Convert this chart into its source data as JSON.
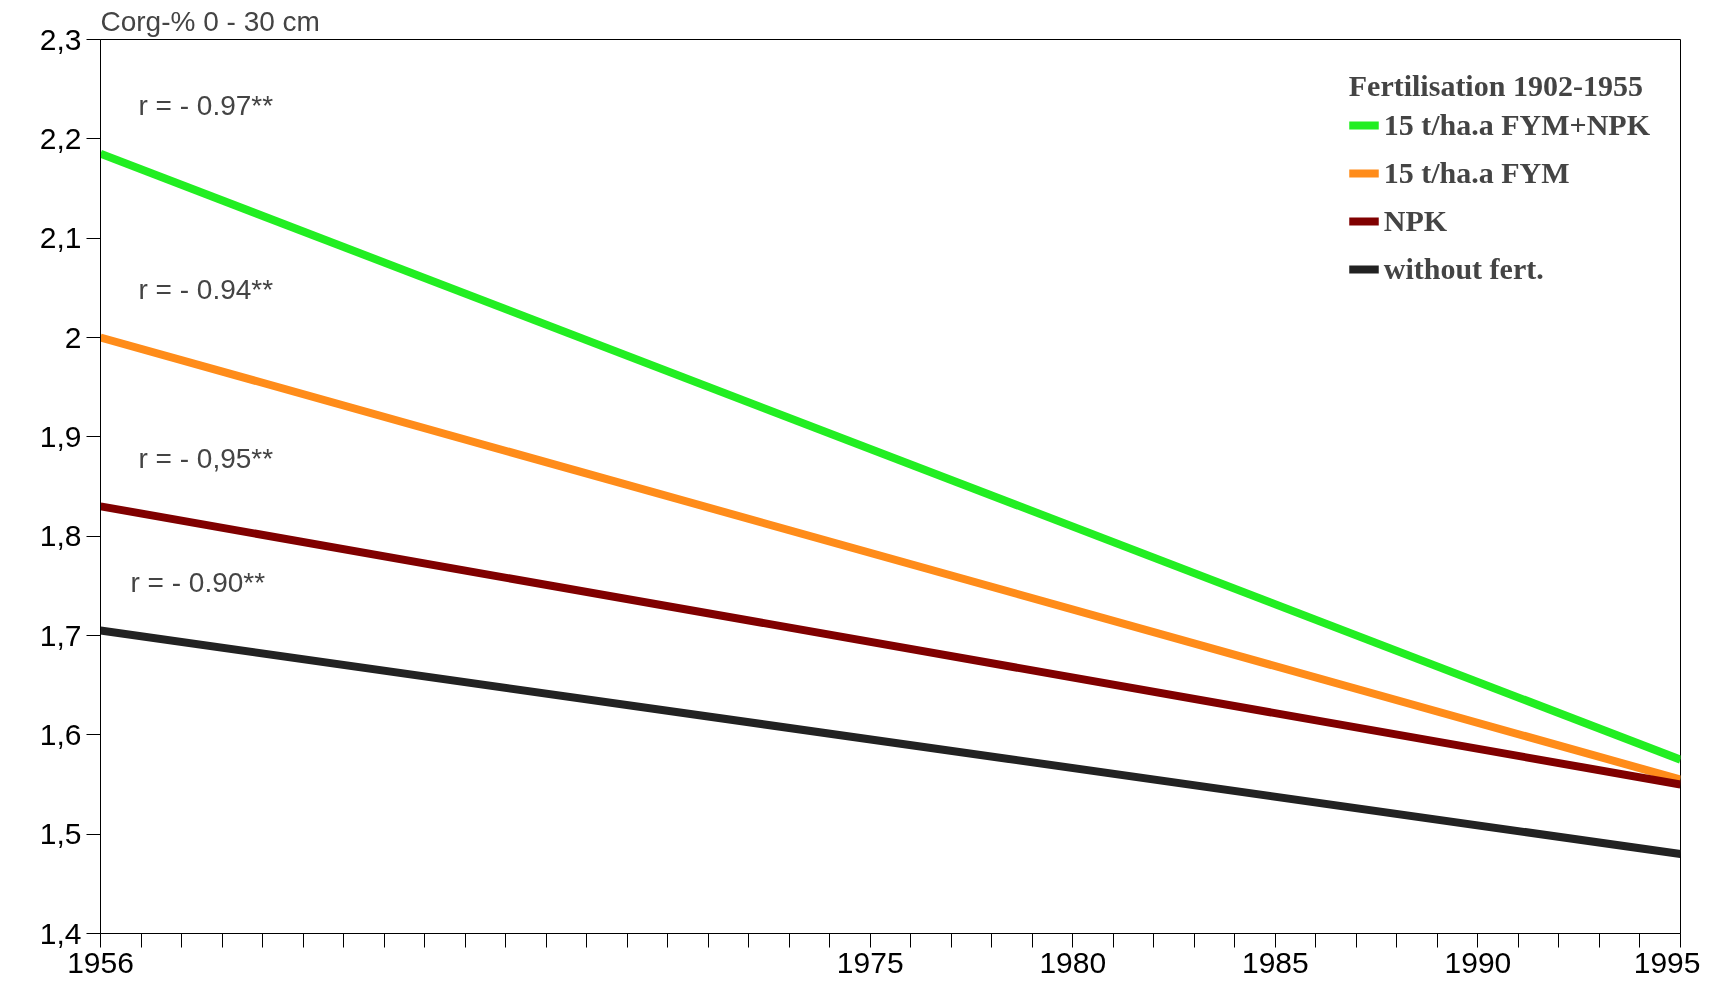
{
  "chart_data": {
    "type": "line",
    "ylabel": "Corg-% 0 - 30 cm",
    "legend_title": "Fertilisation 1902-1955",
    "legend": "top right",
    "grid": false,
    "marker": "none",
    "line_style": "solid",
    "x": [
      1956,
      1995
    ],
    "series": [
      {
        "name": "15 t/ha.a FYM+NPK",
        "color": "#22ee22",
        "values": [
          2.185,
          1.575
        ]
      },
      {
        "name": "15 t/ha.a FYM",
        "color": "#ff8c1a",
        "values": [
          2.0,
          1.555
        ]
      },
      {
        "name": "NPK",
        "color": "#800000",
        "values": [
          1.83,
          1.55
        ]
      },
      {
        "name": "without fert.",
        "color": "#222222",
        "values": [
          1.705,
          1.48
        ]
      }
    ],
    "annotations": [
      "r = - 0.97**",
      "r = - 0.94**",
      "r = - 0,95**",
      "r = - 0.90**"
    ],
    "xlim": [
      1956,
      1995
    ],
    "ylim": [
      1.4,
      2.3
    ],
    "xticks": [
      1956,
      {
        "value": 1957,
        "label": null
      },
      {
        "value": 1958,
        "label": null
      },
      {
        "value": 1959,
        "label": null
      },
      {
        "value": 1960,
        "label": null
      },
      {
        "value": 1961,
        "label": null
      },
      {
        "value": 1962,
        "label": null
      },
      {
        "value": 1963,
        "label": null
      },
      {
        "value": 1964,
        "label": null
      },
      {
        "value": 1965,
        "label": null
      },
      {
        "value": 1966,
        "label": null
      },
      {
        "value": 1967,
        "label": null
      },
      {
        "value": 1968,
        "label": null
      },
      {
        "value": 1969,
        "label": null
      },
      {
        "value": 1970,
        "label": null
      },
      {
        "value": 1971,
        "label": null
      },
      {
        "value": 1972,
        "label": null
      },
      {
        "value": 1973,
        "label": null
      },
      {
        "value": 1974,
        "label": null
      },
      1975,
      {
        "value": 1976,
        "label": null
      },
      {
        "value": 1977,
        "label": null
      },
      {
        "value": 1978,
        "label": null
      },
      {
        "value": 1979,
        "label": null
      },
      1980,
      {
        "value": 1981,
        "label": null
      },
      {
        "value": 1982,
        "label": null
      },
      {
        "value": 1983,
        "label": null
      },
      {
        "value": 1984,
        "label": null
      },
      1985,
      {
        "value": 1986,
        "label": null
      },
      {
        "value": 1987,
        "label": null
      },
      {
        "value": 1988,
        "label": null
      },
      {
        "value": 1989,
        "label": null
      },
      1990,
      {
        "value": 1991,
        "label": null
      },
      {
        "value": 1992,
        "label": null
      },
      {
        "value": 1993,
        "label": null
      },
      {
        "value": 1994,
        "label": null
      },
      1995
    ],
    "yticks": [
      {
        "value": 1.4,
        "label": "1,4"
      },
      {
        "value": 1.5,
        "label": "1,5"
      },
      {
        "value": 1.6,
        "label": "1,6"
      },
      {
        "value": 1.7,
        "label": "1,7"
      },
      {
        "value": 1.8,
        "label": "1,8"
      },
      {
        "value": 1.9,
        "label": "1,9"
      },
      2,
      {
        "value": 2.1,
        "label": "2,1"
      },
      {
        "value": 2.2,
        "label": "2,2"
      },
      {
        "value": 2.3,
        "label": "2,3"
      }
    ]
  }
}
